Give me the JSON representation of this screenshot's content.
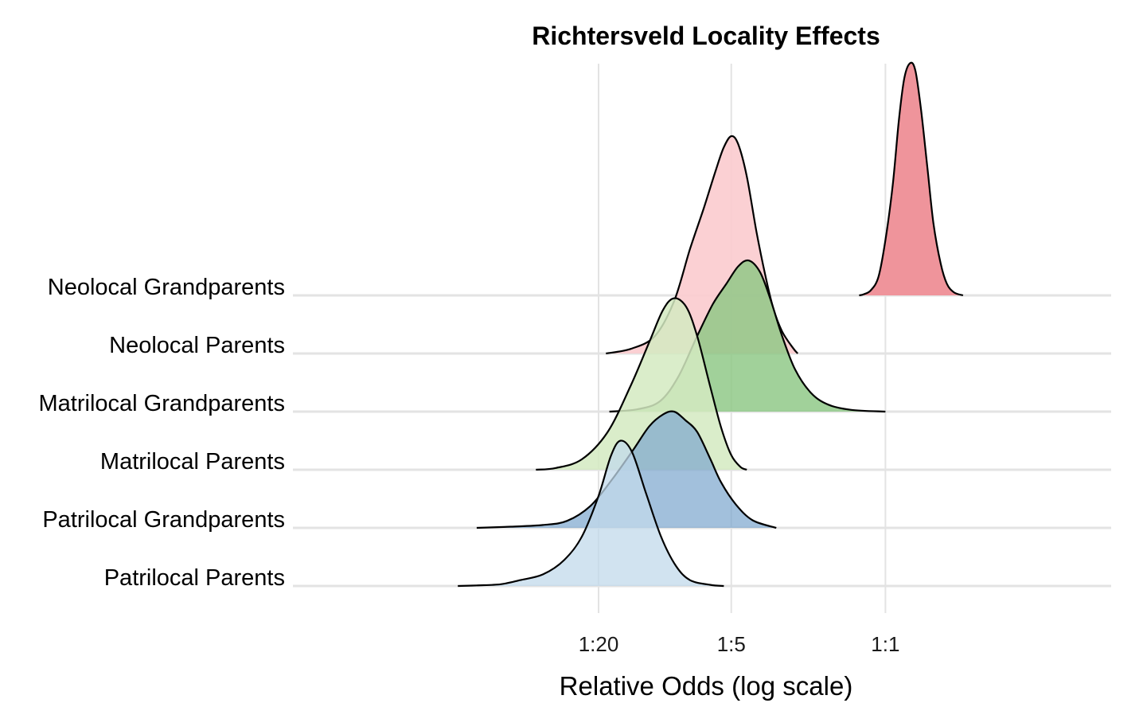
{
  "chart_data": {
    "type": "ridgeline",
    "title": "Richtersveld Locality Effects",
    "xlabel": "Relative Odds (log scale)",
    "ylabel": "",
    "x_scale": "log",
    "x_ticks": [
      {
        "value": 0.05,
        "label": "1:20"
      },
      {
        "value": 0.2,
        "label": "1:5"
      },
      {
        "value": 1,
        "label": "1:1"
      }
    ],
    "grid": true,
    "legend": "none",
    "categories": [
      "Neolocal Grandparents",
      "Neolocal Parents",
      "Matrilocal Grandparents",
      "Matrilocal Parents",
      "Patrilocal Grandparents",
      "Patrilocal Parents"
    ],
    "series": [
      {
        "name": "Neolocal Grandparents",
        "color": "#ef949b",
        "opacity": 1,
        "peak_height": 4.0,
        "points": [
          [
            0.76,
            0.0
          ],
          [
            0.8,
            0.02
          ],
          [
            0.86,
            0.09
          ],
          [
            0.93,
            0.32
          ],
          [
            1.0,
            0.95
          ],
          [
            1.08,
            1.9
          ],
          [
            1.15,
            3.0
          ],
          [
            1.22,
            3.75
          ],
          [
            1.3,
            4.0
          ],
          [
            1.37,
            3.85
          ],
          [
            1.45,
            3.2
          ],
          [
            1.55,
            2.2
          ],
          [
            1.65,
            1.25
          ],
          [
            1.78,
            0.55
          ],
          [
            1.9,
            0.2
          ],
          [
            2.05,
            0.05
          ],
          [
            2.25,
            0.0
          ]
        ]
      },
      {
        "name": "Neolocal Parents",
        "color": "#fbcbce",
        "opacity": 0.9,
        "peak_height": 3.74,
        "points": [
          [
            0.054,
            0.0
          ],
          [
            0.07,
            0.08
          ],
          [
            0.09,
            0.3
          ],
          [
            0.11,
            0.9
          ],
          [
            0.13,
            1.8
          ],
          [
            0.15,
            2.5
          ],
          [
            0.17,
            3.15
          ],
          [
            0.185,
            3.55
          ],
          [
            0.2,
            3.74
          ],
          [
            0.215,
            3.6
          ],
          [
            0.235,
            3.05
          ],
          [
            0.26,
            2.1
          ],
          [
            0.285,
            1.35
          ],
          [
            0.31,
            0.78
          ],
          [
            0.34,
            0.38
          ],
          [
            0.38,
            0.1
          ],
          [
            0.4,
            0.0
          ]
        ]
      },
      {
        "name": "Matrilocal Grandparents",
        "color": "#8cc784",
        "opacity": 0.82,
        "peak_height": 2.6,
        "points": [
          [
            0.056,
            0.0
          ],
          [
            0.075,
            0.04
          ],
          [
            0.095,
            0.18
          ],
          [
            0.115,
            0.6
          ],
          [
            0.14,
            1.3
          ],
          [
            0.165,
            1.85
          ],
          [
            0.19,
            2.2
          ],
          [
            0.215,
            2.5
          ],
          [
            0.24,
            2.6
          ],
          [
            0.27,
            2.4
          ],
          [
            0.3,
            1.95
          ],
          [
            0.34,
            1.3
          ],
          [
            0.39,
            0.72
          ],
          [
            0.46,
            0.32
          ],
          [
            0.55,
            0.12
          ],
          [
            0.7,
            0.03
          ],
          [
            1.0,
            0.0
          ]
        ]
      },
      {
        "name": "Matrilocal Parents",
        "color": "#d3eac1",
        "opacity": 0.85,
        "peak_height": 2.95,
        "points": [
          [
            0.026,
            0.0
          ],
          [
            0.032,
            0.03
          ],
          [
            0.042,
            0.18
          ],
          [
            0.055,
            0.65
          ],
          [
            0.07,
            1.45
          ],
          [
            0.085,
            2.2
          ],
          [
            0.098,
            2.75
          ],
          [
            0.11,
            2.95
          ],
          [
            0.125,
            2.8
          ],
          [
            0.14,
            2.3
          ],
          [
            0.16,
            1.45
          ],
          [
            0.18,
            0.72
          ],
          [
            0.2,
            0.25
          ],
          [
            0.22,
            0.05
          ],
          [
            0.235,
            0.0
          ]
        ]
      },
      {
        "name": "Patrilocal Grandparents",
        "color": "#7ea8cf",
        "opacity": 0.72,
        "peak_height": 2.0,
        "points": [
          [
            0.014,
            0.0
          ],
          [
            0.02,
            0.02
          ],
          [
            0.028,
            0.05
          ],
          [
            0.036,
            0.12
          ],
          [
            0.046,
            0.38
          ],
          [
            0.058,
            0.85
          ],
          [
            0.072,
            1.35
          ],
          [
            0.085,
            1.75
          ],
          [
            0.098,
            1.95
          ],
          [
            0.11,
            2.0
          ],
          [
            0.124,
            1.85
          ],
          [
            0.14,
            1.65
          ],
          [
            0.16,
            1.2
          ],
          [
            0.18,
            0.78
          ],
          [
            0.21,
            0.4
          ],
          [
            0.25,
            0.13
          ],
          [
            0.32,
            0.0
          ]
        ]
      },
      {
        "name": "Patrilocal Parents",
        "color": "#c2daeb",
        "opacity": 0.75,
        "peak_height": 2.5,
        "points": [
          [
            0.0115,
            0.0
          ],
          [
            0.014,
            0.01
          ],
          [
            0.018,
            0.03
          ],
          [
            0.022,
            0.1
          ],
          [
            0.028,
            0.2
          ],
          [
            0.035,
            0.45
          ],
          [
            0.042,
            0.85
          ],
          [
            0.05,
            1.55
          ],
          [
            0.057,
            2.25
          ],
          [
            0.063,
            2.5
          ],
          [
            0.071,
            2.3
          ],
          [
            0.082,
            1.6
          ],
          [
            0.096,
            0.85
          ],
          [
            0.112,
            0.35
          ],
          [
            0.13,
            0.1
          ],
          [
            0.16,
            0.02
          ],
          [
            0.185,
            0.0
          ]
        ]
      }
    ]
  }
}
